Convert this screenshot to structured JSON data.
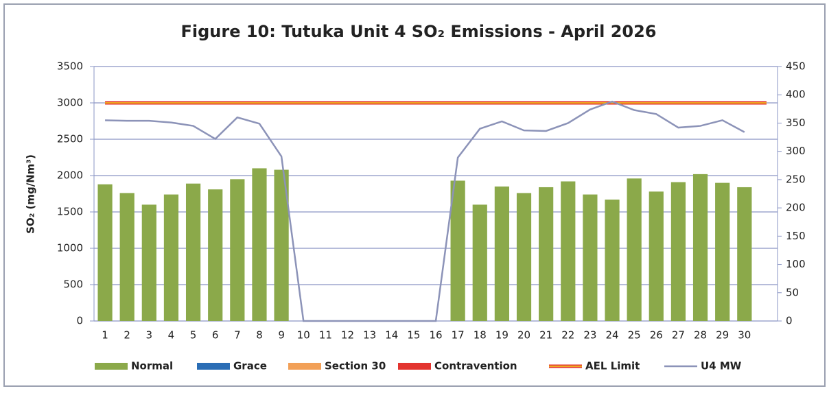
{
  "chart_data": {
    "type": "bar",
    "title": "Figure 10: Tutuka Unit 4 SO₂ Emissions - April 2026",
    "y_label": "SO₂  (mg/Nm³)",
    "categories": [
      "1",
      "2",
      "3",
      "4",
      "5",
      "6",
      "7",
      "8",
      "9",
      "10",
      "11",
      "12",
      "13",
      "14",
      "15",
      "16",
      "17",
      "18",
      "19",
      "20",
      "21",
      "22",
      "23",
      "24",
      "25",
      "26",
      "27",
      "28",
      "29",
      "30",
      null
    ],
    "series": [
      {
        "name": "Normal",
        "type": "bar",
        "color": "#8ba94a",
        "values": [
          1880,
          1760,
          1600,
          1740,
          1890,
          1810,
          1950,
          2100,
          2080,
          0,
          0,
          0,
          0,
          0,
          0,
          0,
          1930,
          1600,
          1850,
          1760,
          1840,
          1920,
          1740,
          1670,
          1960,
          1780,
          1910,
          2020,
          1900,
          1840,
          null
        ]
      },
      {
        "name": "Grace",
        "type": "bar",
        "color": "#2a6db5",
        "values": [
          null,
          null,
          null,
          null,
          null,
          null,
          null,
          null,
          null,
          null,
          null,
          null,
          null,
          null,
          null,
          null,
          null,
          null,
          null,
          null,
          null,
          null,
          null,
          null,
          null,
          null,
          null,
          null,
          null,
          null,
          null
        ]
      },
      {
        "name": "Section 30",
        "type": "bar",
        "color": "#f2a057",
        "values": [
          null,
          null,
          null,
          null,
          null,
          null,
          null,
          null,
          null,
          null,
          null,
          null,
          null,
          null,
          null,
          null,
          null,
          null,
          null,
          null,
          null,
          null,
          null,
          null,
          null,
          null,
          null,
          null,
          null,
          null,
          null
        ]
      },
      {
        "name": "Contravention",
        "type": "bar",
        "color": "#e3342f",
        "values": [
          null,
          null,
          null,
          null,
          null,
          null,
          null,
          null,
          null,
          null,
          null,
          null,
          null,
          null,
          null,
          null,
          null,
          null,
          null,
          null,
          null,
          null,
          null,
          null,
          null,
          null,
          null,
          null,
          null,
          null,
          null
        ]
      },
      {
        "name": "AEL Limit",
        "type": "line",
        "color": "#f2d21b",
        "edge_color": "#e3342f",
        "values": [
          3000,
          3000,
          3000,
          3000,
          3000,
          3000,
          3000,
          3000,
          3000,
          3000,
          3000,
          3000,
          3000,
          3000,
          3000,
          3000,
          3000,
          3000,
          3000,
          3000,
          3000,
          3000,
          3000,
          3000,
          3000,
          3000,
          3000,
          3000,
          3000,
          3000,
          3000
        ]
      },
      {
        "name": "U4 MW",
        "type": "line",
        "axis": "y2",
        "color": "#8c93b8",
        "values": [
          355,
          354,
          354,
          351,
          345,
          322,
          360,
          349,
          291,
          0,
          0,
          0,
          0,
          0,
          0,
          0,
          289,
          340,
          353,
          337,
          336,
          350,
          374,
          388,
          373,
          366,
          342,
          345,
          355,
          334,
          null
        ]
      }
    ],
    "ylim": [
      0,
      3500
    ],
    "yticks": [
      0,
      500,
      1000,
      1500,
      2000,
      2500,
      3000,
      3500
    ],
    "y2lim": [
      0,
      450
    ],
    "y2ticks": [
      0,
      50,
      100,
      150,
      200,
      250,
      300,
      350,
      400,
      450
    ],
    "grid": true,
    "legend": "bottom"
  }
}
